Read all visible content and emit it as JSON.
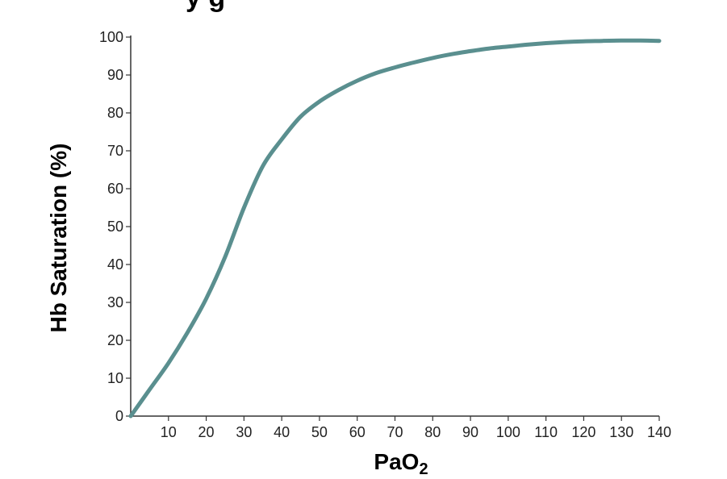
{
  "chart_data": {
    "type": "line",
    "title_fragment": "y  g",
    "xlabel": "PaO",
    "xlabel_subscript": "2",
    "ylabel": "Hb Saturation (%)",
    "xlim": [
      0,
      140
    ],
    "ylim": [
      0,
      100
    ],
    "x_ticks": [
      10,
      20,
      30,
      40,
      50,
      60,
      70,
      80,
      90,
      100,
      110,
      120,
      130,
      140
    ],
    "y_ticks": [
      0,
      10,
      20,
      30,
      40,
      50,
      60,
      70,
      80,
      90,
      100
    ],
    "grid": false,
    "series": [
      {
        "color": "#5a8f8f",
        "x": [
          0,
          5,
          10,
          15,
          20,
          25,
          30,
          35,
          40,
          45,
          50,
          55,
          60,
          65,
          70,
          75,
          80,
          85,
          90,
          95,
          100,
          105,
          110,
          115,
          120,
          125,
          130,
          135,
          140
        ],
        "y": [
          0,
          7,
          14,
          22,
          31,
          42,
          55,
          66,
          73,
          79,
          83,
          86,
          88.5,
          90.5,
          92,
          93.3,
          94.5,
          95.5,
          96.3,
          97,
          97.5,
          98,
          98.4,
          98.7,
          98.9,
          99,
          99.1,
          99.1,
          99
        ]
      }
    ]
  }
}
